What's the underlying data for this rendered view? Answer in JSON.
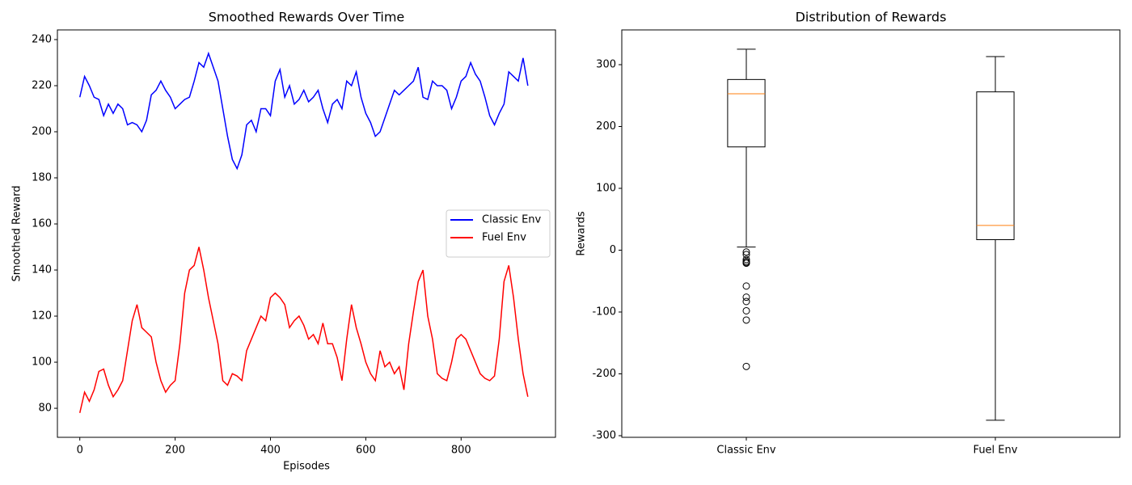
{
  "chart_data": [
    {
      "type": "line",
      "title": "Smoothed Rewards Over Time",
      "xlabel": "Episodes",
      "ylabel": "Smoothed Reward",
      "x": [
        0,
        10,
        20,
        30,
        40,
        50,
        60,
        70,
        80,
        90,
        100,
        110,
        120,
        130,
        140,
        150,
        160,
        170,
        180,
        190,
        200,
        210,
        220,
        230,
        240,
        250,
        260,
        270,
        280,
        290,
        300,
        310,
        320,
        330,
        340,
        350,
        360,
        370,
        380,
        390,
        400,
        410,
        420,
        430,
        440,
        450,
        460,
        470,
        480,
        490,
        500,
        510,
        520,
        530,
        540,
        550,
        560,
        570,
        580,
        590,
        600,
        610,
        620,
        630,
        640,
        650,
        660,
        670,
        680,
        690,
        700,
        710,
        720,
        730,
        740,
        750,
        760,
        770,
        780,
        790,
        800,
        810,
        820,
        830,
        840,
        850,
        860,
        870,
        880,
        890,
        900,
        910,
        920,
        930,
        940
      ],
      "series": [
        {
          "name": "Classic Env",
          "color": "#0000ff",
          "values": [
            215,
            224,
            220,
            215,
            214,
            207,
            212,
            208,
            212,
            210,
            203,
            204,
            203,
            200,
            205,
            216,
            218,
            222,
            218,
            215,
            210,
            212,
            214,
            215,
            222,
            230,
            228,
            234,
            228,
            222,
            210,
            198,
            188,
            184,
            190,
            203,
            205,
            200,
            210,
            210,
            207,
            222,
            227,
            215,
            220,
            212,
            214,
            218,
            213,
            215,
            218,
            210,
            204,
            212,
            214,
            210,
            222,
            220,
            226,
            215,
            208,
            204,
            198,
            200,
            206,
            212,
            218,
            216,
            218,
            220,
            222,
            228,
            215,
            214,
            222,
            220,
            220,
            218,
            210,
            215,
            222,
            224,
            230,
            225,
            222,
            215,
            207,
            203,
            208,
            212,
            226,
            224,
            222,
            232,
            220
          ]
        },
        {
          "name": "Fuel Env",
          "color": "#ff0000",
          "values": [
            78,
            87,
            83,
            88,
            96,
            97,
            90,
            85,
            88,
            92,
            105,
            118,
            125,
            115,
            113,
            111,
            100,
            92,
            87,
            90,
            92,
            108,
            130,
            140,
            142,
            150,
            140,
            128,
            118,
            108,
            92,
            90,
            95,
            94,
            92,
            105,
            110,
            115,
            120,
            118,
            128,
            130,
            128,
            125,
            115,
            118,
            120,
            116,
            110,
            112,
            108,
            117,
            108,
            108,
            102,
            92,
            110,
            125,
            115,
            108,
            100,
            95,
            92,
            105,
            98,
            100,
            95,
            98,
            88,
            108,
            122,
            135,
            140,
            120,
            110,
            95,
            93,
            92,
            100,
            110,
            112,
            110,
            105,
            100,
            95,
            93,
            92,
            94,
            110,
            135,
            142,
            128,
            110,
            95,
            85
          ]
        }
      ],
      "xlim": [
        -47,
        998
      ],
      "xticks": [
        0,
        200,
        400,
        600,
        800
      ],
      "ylim": [
        67.4,
        244.2
      ],
      "yticks": [
        80,
        100,
        120,
        140,
        160,
        180,
        200,
        220,
        240
      ],
      "legend": "center right"
    },
    {
      "type": "box",
      "title": "Distribution of Rewards",
      "ylabel": "Rewards",
      "categories": [
        "Classic Env",
        "Fuel Env"
      ],
      "boxes": [
        {
          "whislo": 5,
          "q1": 167,
          "med": 253,
          "q3": 276,
          "whishi": 325,
          "fliers": [
            -3,
            -7,
            -15,
            -18,
            -20,
            -21,
            -58,
            -76,
            -83,
            -98,
            -113,
            -188
          ]
        },
        {
          "whislo": -275,
          "q1": 17,
          "med": 40,
          "q3": 256,
          "whishi": 313,
          "fliers": []
        }
      ],
      "median_color": "#ff7f0e",
      "ylim": [
        -302.6,
        356.2
      ],
      "yticks": [
        -300,
        -200,
        -100,
        0,
        100,
        200,
        300
      ]
    }
  ]
}
